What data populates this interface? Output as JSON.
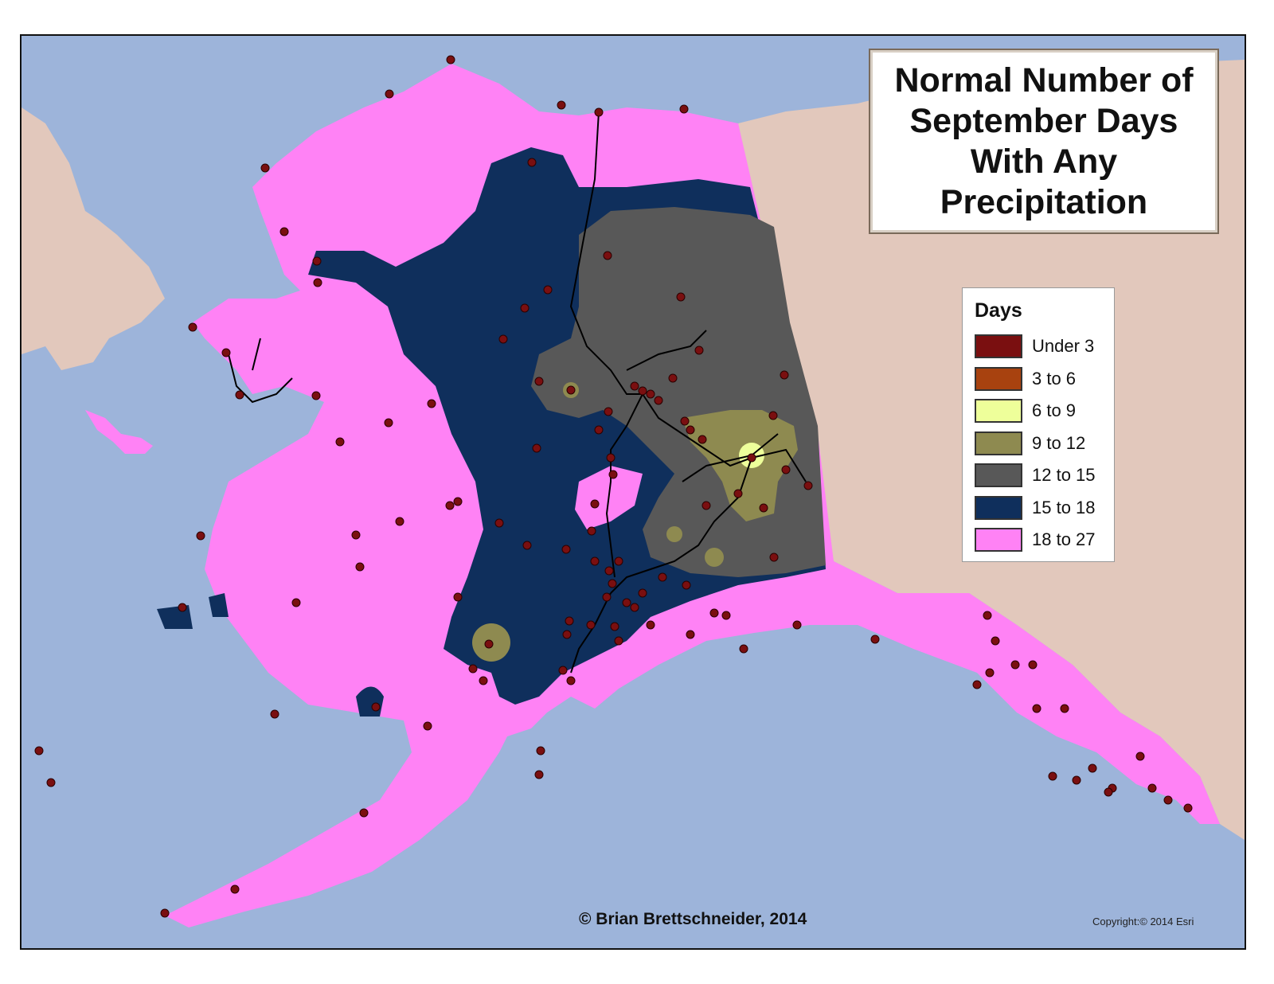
{
  "title": "Normal Number of\nSeptember Days\nWith Any\nPrecipitation",
  "legend": {
    "title": "Days",
    "items": [
      {
        "label": "Under 3",
        "color": "#7a0f10"
      },
      {
        "label": "3 to 6",
        "color": "#a8420f"
      },
      {
        "label": "6 to 9",
        "color": "#eeff9a"
      },
      {
        "label": "9 to 12",
        "color": "#8e8a50"
      },
      {
        "label": "12 to 15",
        "color": "#585858"
      },
      {
        "label": "15 to 18",
        "color": "#0f2f5c"
      },
      {
        "label": "18 to 27",
        "color": "#ff82f5"
      }
    ]
  },
  "credit": "© Brian Brettschneider, 2014",
  "basemap_copyright": "Copyright:© 2014 Esri",
  "colors": {
    "ocean": "#9db4da",
    "land_terrain": "#e2c8bc",
    "station": "#7a0f10",
    "road": "#000000"
  }
}
